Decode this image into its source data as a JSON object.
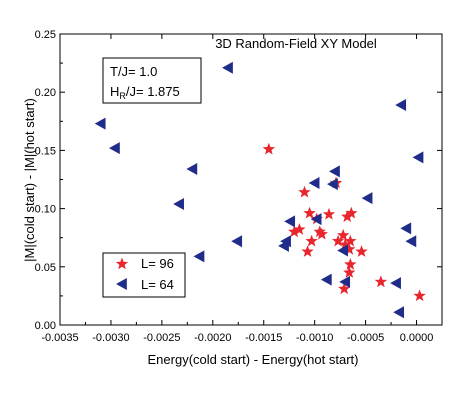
{
  "chart_data": {
    "type": "scatter",
    "title": "3D Random-Field XY Model",
    "xlabel": "Energy(cold start) - Energy(hot start)",
    "ylabel": "|M|(cold start) - |M|(hot start)",
    "xlim": [
      -0.0035,
      0.00025
    ],
    "ylim": [
      0.0,
      0.25
    ],
    "x_ticks": [
      "-0.0035",
      "-0.0030",
      "-0.0025",
      "-0.0020",
      "-0.0015",
      "-0.0010",
      "-0.0005",
      "0.0000"
    ],
    "x_tick_values": [
      -0.0035,
      -0.003,
      -0.0025,
      -0.002,
      -0.0015,
      -0.001,
      -0.0005,
      0.0
    ],
    "y_ticks": [
      "0.00",
      "0.05",
      "0.10",
      "0.15",
      "0.20",
      "0.25"
    ],
    "y_tick_values": [
      0.0,
      0.05,
      0.1,
      0.15,
      0.2,
      0.25
    ],
    "annotation": {
      "line1": "T/J= 1.0",
      "line2_main": "H",
      "line2_sub": "R",
      "line2_rest": "/J= 1.875"
    },
    "legend_placement": "bottom-left",
    "series": [
      {
        "name": "L= 96",
        "marker": "star",
        "color": "#e8262d",
        "points": [
          [
            -0.00145,
            0.151
          ],
          [
            -0.0011,
            0.114
          ],
          [
            -0.00079,
            0.122
          ],
          [
            -0.00068,
            0.093
          ],
          [
            -0.00064,
            0.096
          ],
          [
            -0.00086,
            0.095
          ],
          [
            -0.00105,
            0.096
          ],
          [
            -0.00098,
            0.091
          ],
          [
            -0.00115,
            0.082
          ],
          [
            -0.0012,
            0.08
          ],
          [
            -0.00095,
            0.08
          ],
          [
            -0.00103,
            0.072
          ],
          [
            -0.00093,
            0.078
          ],
          [
            -0.00077,
            0.072
          ],
          [
            -0.00107,
            0.063
          ],
          [
            -0.00072,
            0.077
          ],
          [
            -0.0007,
            0.069
          ],
          [
            -0.00065,
            0.072
          ],
          [
            -0.00066,
            0.065
          ],
          [
            -0.00054,
            0.063
          ],
          [
            -0.00065,
            0.052
          ],
          [
            -0.00066,
            0.045
          ],
          [
            -0.00071,
            0.031
          ],
          [
            -0.00035,
            0.037
          ],
          [
            3e-05,
            0.025
          ]
        ]
      },
      {
        "name": "L= 64",
        "marker": "triangle-left",
        "color": "#1f2c8a",
        "points": [
          [
            -0.00185,
            0.221
          ],
          [
            -0.00015,
            0.189
          ],
          [
            -0.0031,
            0.173
          ],
          [
            -0.00296,
            0.152
          ],
          [
            2e-05,
            0.144
          ],
          [
            -0.0022,
            0.134
          ],
          [
            -0.0008,
            0.132
          ],
          [
            -0.001,
            0.122
          ],
          [
            -0.00082,
            0.121
          ],
          [
            -0.00048,
            0.109
          ],
          [
            -0.00233,
            0.104
          ],
          [
            -0.00098,
            0.091
          ],
          [
            -0.00124,
            0.089
          ],
          [
            -0.0001,
            0.083
          ],
          [
            -0.00128,
            0.072
          ],
          [
            -0.00176,
            0.072
          ],
          [
            -5e-05,
            0.072
          ],
          [
            -0.0013,
            0.068
          ],
          [
            -0.00072,
            0.064
          ],
          [
            -0.00213,
            0.059
          ],
          [
            -0.00088,
            0.039
          ],
          [
            -0.0007,
            0.037
          ],
          [
            -0.0002,
            0.036
          ],
          [
            -0.00017,
            0.011
          ]
        ]
      }
    ]
  }
}
